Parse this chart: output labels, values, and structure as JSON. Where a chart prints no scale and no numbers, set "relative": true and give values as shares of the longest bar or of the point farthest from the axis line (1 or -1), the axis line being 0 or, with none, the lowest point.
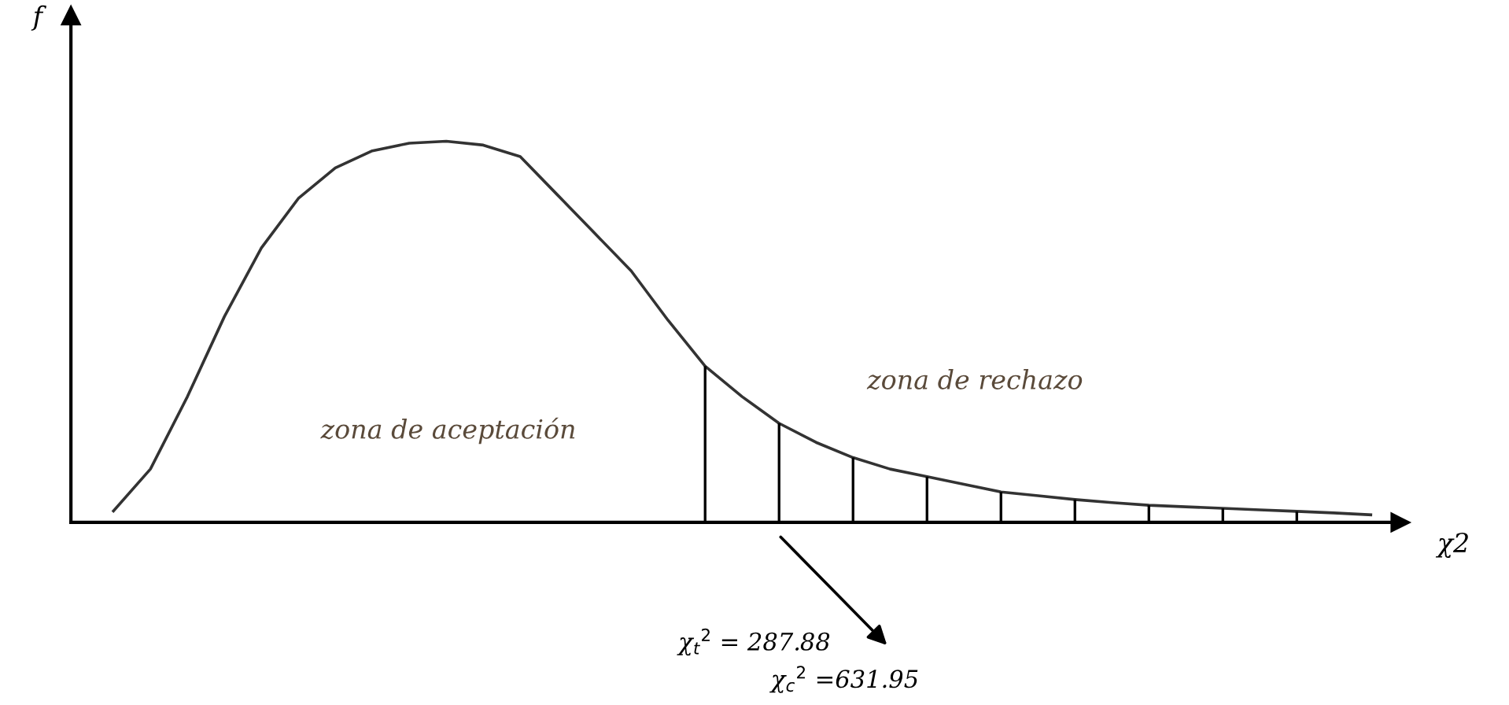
{
  "chart_data": {
    "type": "line",
    "relative": true,
    "xlabel": "χ2",
    "ylabel": "f",
    "categories": [
      null,
      null,
      null,
      null,
      null,
      null,
      null,
      null,
      null,
      null,
      null,
      null,
      null,
      null,
      null,
      null,
      null,
      null,
      null,
      null,
      null,
      null,
      null,
      null,
      null,
      null,
      null,
      null,
      null,
      null,
      null,
      null,
      null,
      null,
      null
    ],
    "series": [
      {
        "color": "#333333",
        "values": [
          0.03,
          0.14,
          0.33,
          0.54,
          0.72,
          0.85,
          0.93,
          0.975,
          0.995,
          1.0,
          0.99,
          0.96,
          0.86,
          0.76,
          0.66,
          0.53,
          0.41,
          0.33,
          0.26,
          0.21,
          0.17,
          0.14,
          0.12,
          0.1,
          0.08,
          0.07,
          0.06,
          0.052,
          0.045,
          0.041,
          0.037,
          0.033,
          0.029,
          0.025,
          0.02
        ]
      }
    ],
    "annotations": [
      "zona de aceptación",
      "zona de rechazo",
      "χ$_{t}$$^{2}$ = 287.88",
      "χ$_{c}$$^{2}$ =631.95"
    ]
  }
}
